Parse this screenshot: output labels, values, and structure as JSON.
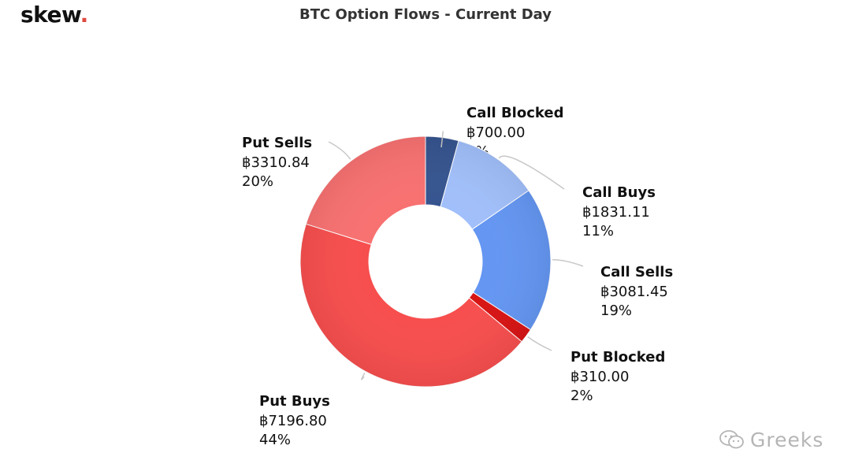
{
  "brand": {
    "logo_text": "skew",
    "logo_dot": "."
  },
  "chart_data": {
    "type": "pie",
    "title": "BTC Option Flows - Current Day",
    "donut": true,
    "slices": [
      {
        "label": "Call Blocked",
        "value": 700.0,
        "value_text": "฿700.00",
        "percent_text": "4%",
        "color": "#36548f"
      },
      {
        "label": "Call Buys",
        "value": 1831.11,
        "value_text": "฿1831.11",
        "percent_text": "11%",
        "color": "#a1bffa"
      },
      {
        "label": "Call Sells",
        "value": 3081.45,
        "value_text": "฿3081.45",
        "percent_text": "19%",
        "color": "#6496f2"
      },
      {
        "label": "Put Blocked",
        "value": 310.0,
        "value_text": "฿310.00",
        "percent_text": "2%",
        "color": "#d81414"
      },
      {
        "label": "Put Buys",
        "value": 7196.8,
        "value_text": "฿7196.80",
        "percent_text": "44%",
        "color": "#f74e4e"
      },
      {
        "label": "Put Sells",
        "value": 3310.84,
        "value_text": "฿3310.84",
        "percent_text": "20%",
        "color": "#f87171"
      }
    ]
  },
  "watermark": {
    "text": "Greeks"
  }
}
